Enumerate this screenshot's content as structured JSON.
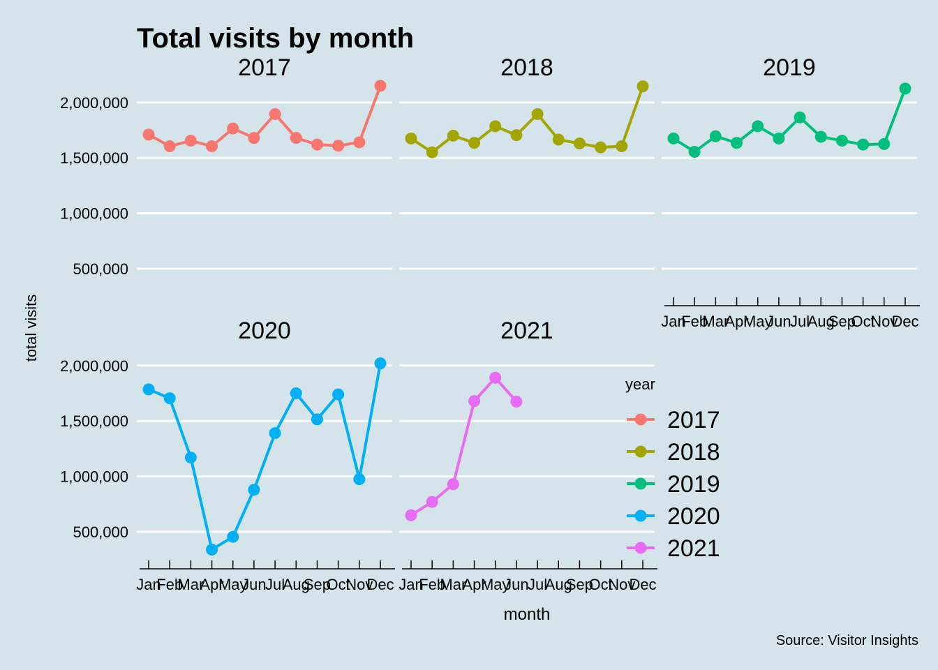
{
  "chart_data": {
    "type": "line",
    "title": "Total visits by month",
    "xlabel": "month",
    "ylabel": "total visits",
    "caption": "Source: Visitor Insights",
    "months": [
      "Jan",
      "Feb",
      "Mar",
      "Apr",
      "May",
      "Jun",
      "Jul",
      "Aug",
      "Sep",
      "Oct",
      "Nov",
      "Dec"
    ],
    "yticks": [
      500000,
      1000000,
      1500000,
      2000000
    ],
    "ytick_labels": [
      "500,000",
      "1,000,000",
      "1,500,000",
      "2,000,000"
    ],
    "ylim": [
      280000,
      2200000
    ],
    "grid": true,
    "legend": {
      "title": "year",
      "position": "right"
    },
    "series": [
      {
        "name": "2017",
        "color": "#F8766D",
        "values": [
          1710000,
          1605000,
          1655000,
          1605000,
          1765000,
          1680000,
          1895000,
          1680000,
          1620000,
          1610000,
          1640000,
          2150000
        ]
      },
      {
        "name": "2018",
        "color": "#A3A500",
        "values": [
          1675000,
          1550000,
          1700000,
          1635000,
          1785000,
          1705000,
          1895000,
          1665000,
          1630000,
          1595000,
          1605000,
          2145000
        ]
      },
      {
        "name": "2019",
        "color": "#00BF7D",
        "values": [
          1675000,
          1555000,
          1695000,
          1635000,
          1785000,
          1675000,
          1865000,
          1690000,
          1655000,
          1620000,
          1625000,
          2125000
        ]
      },
      {
        "name": "2020",
        "color": "#00B0F6",
        "values": [
          1785000,
          1705000,
          1170000,
          340000,
          455000,
          880000,
          1390000,
          1750000,
          1515000,
          1740000,
          975000,
          2020000
        ]
      },
      {
        "name": "2021",
        "color": "#E76BF3",
        "values": [
          650000,
          770000,
          930000,
          1680000,
          1890000,
          1675000
        ]
      }
    ]
  }
}
